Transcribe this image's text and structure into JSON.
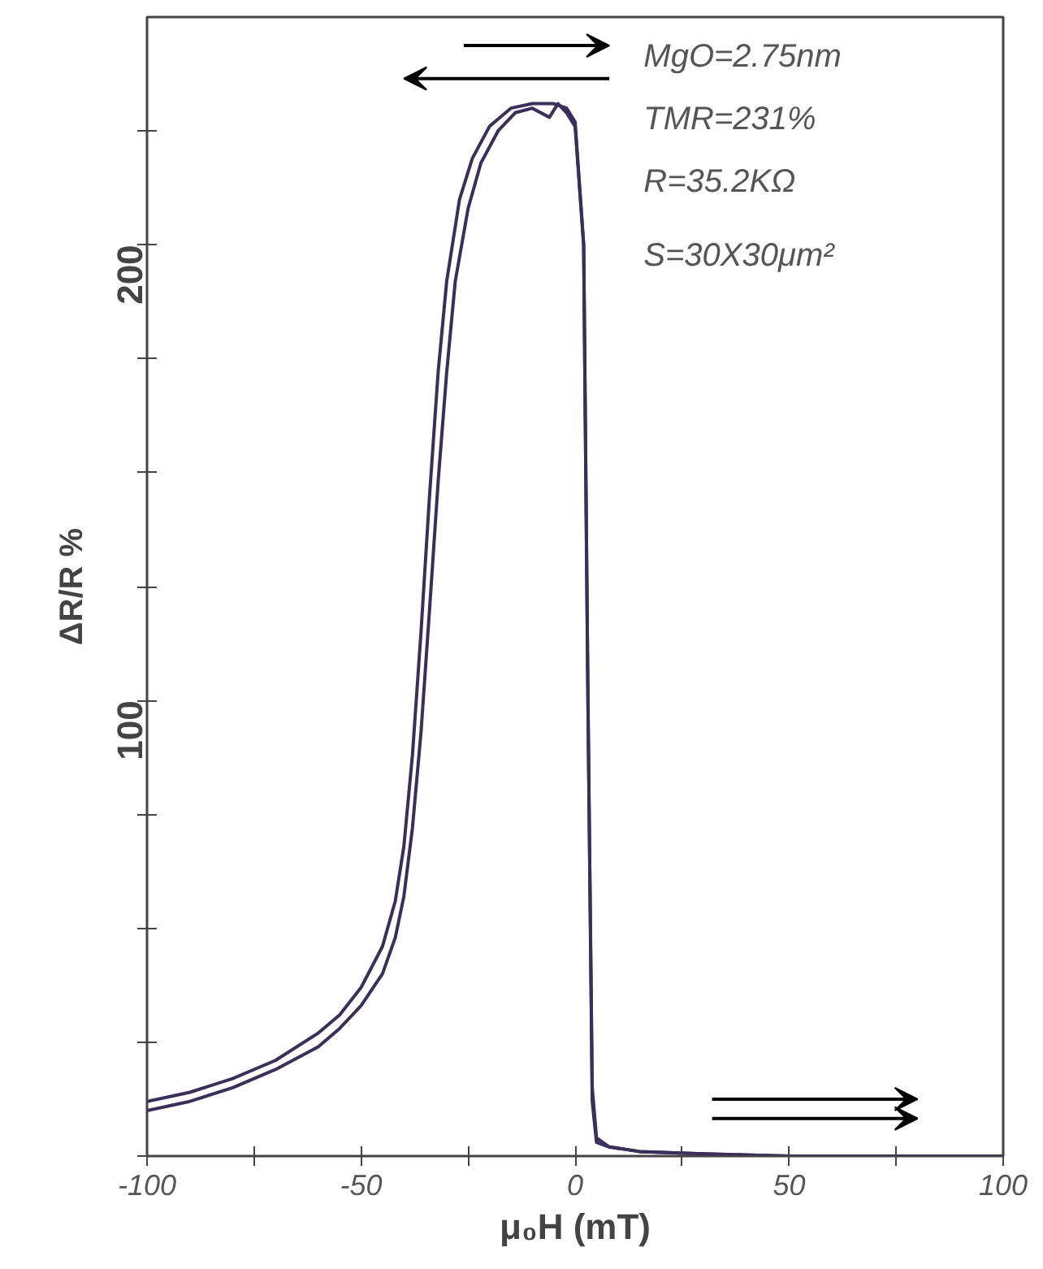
{
  "chart_data": {
    "type": "line",
    "xlabel": "μ₀H (mT)",
    "ylabel": "ΔR/R %",
    "xlim": [
      -100,
      100
    ],
    "ylim": [
      0,
      250
    ],
    "xticks": [
      -100,
      {
        "value": -75,
        "label": null
      },
      -50,
      {
        "value": -25,
        "label": null
      },
      0,
      {
        "value": 25,
        "label": null
      },
      50,
      {
        "value": 75,
        "label": null
      },
      100
    ],
    "yticks": [
      {
        "value": 0,
        "label": null
      },
      {
        "value": 25,
        "label": null
      },
      {
        "value": 50,
        "label": null
      },
      {
        "value": 75,
        "label": null
      },
      100,
      {
        "value": 125,
        "label": null
      },
      {
        "value": 150,
        "label": null
      },
      {
        "value": 175,
        "label": null
      },
      200,
      {
        "value": 225,
        "label": null
      }
    ],
    "annotations": [
      "MgO=2.75nm",
      "TMR=231%",
      "R=35.2KΩ",
      "S=30X30μm²"
    ],
    "series": [
      {
        "color": "#3a2f5a",
        "x": [
          -100,
          -90,
          -80,
          -70,
          -60,
          -55,
          -50,
          -45,
          -42,
          -40,
          -38,
          -36,
          -34,
          -32,
          -30,
          -27,
          -24,
          -20,
          -15,
          -10,
          -5,
          -2,
          0,
          2,
          3,
          4,
          5,
          8,
          15,
          30,
          50,
          75,
          100
        ],
        "values": [
          12,
          14,
          17,
          21,
          27,
          31,
          37,
          46,
          56,
          68,
          88,
          115,
          145,
          172,
          192,
          210,
          219,
          226,
          230,
          231,
          231,
          230,
          227,
          200,
          100,
          15,
          4,
          2,
          1,
          0.5,
          0,
          0,
          0
        ]
      },
      {
        "color": "#3a2f5a",
        "x": [
          -100,
          -90,
          -80,
          -70,
          -60,
          -55,
          -50,
          -45,
          -42,
          -40,
          -38,
          -36,
          -34,
          -32,
          -30,
          -28,
          -25,
          -22,
          -18,
          -14,
          -10,
          -6,
          -4,
          -2,
          0,
          2,
          3,
          4,
          5,
          8,
          15,
          30,
          50,
          75,
          100
        ],
        "values": [
          10,
          12,
          15,
          19,
          24,
          28,
          33,
          40,
          48,
          57,
          72,
          93,
          120,
          148,
          172,
          192,
          208,
          218,
          225,
          229,
          230,
          228,
          231,
          229,
          226,
          200,
          100,
          12,
          3,
          2,
          1,
          0.5,
          0,
          0,
          0
        ]
      }
    ]
  }
}
